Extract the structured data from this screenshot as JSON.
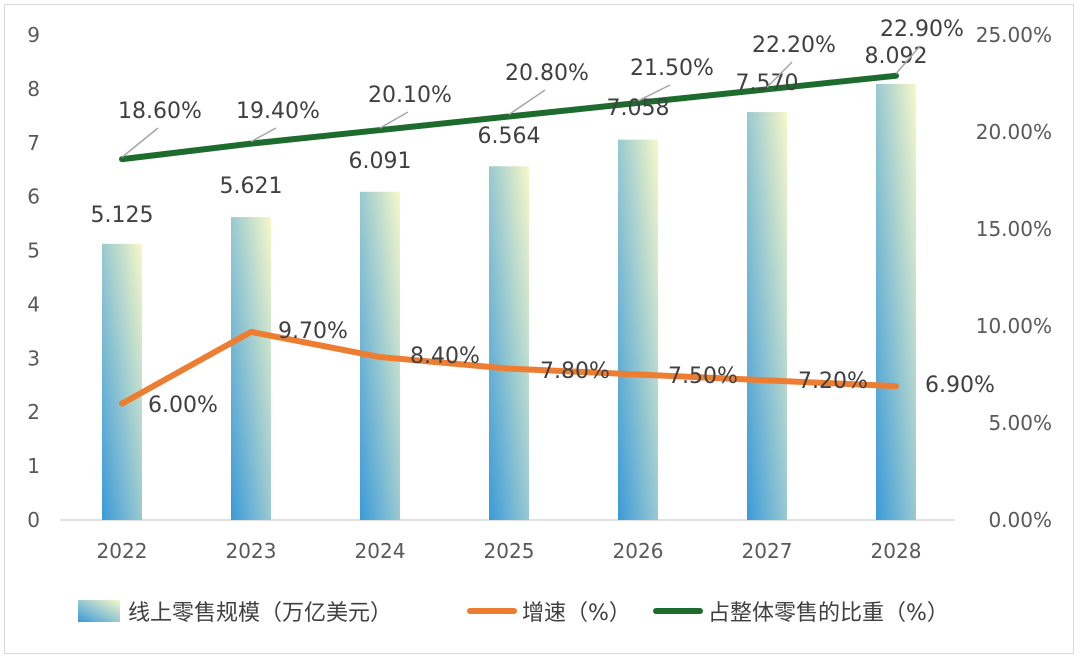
{
  "chart_data": {
    "type": "bar",
    "categories": [
      "2022",
      "2023",
      "2024",
      "2025",
      "2026",
      "2027",
      "2028"
    ],
    "series": [
      {
        "name": "线上零售规模（万亿美元）",
        "type": "bar",
        "axis": "left",
        "values": [
          5.125,
          5.621,
          6.091,
          6.564,
          7.058,
          7.57,
          8.092
        ],
        "labels": [
          "5.125",
          "5.621",
          "6.091",
          "6.564",
          "7.058",
          "7.570",
          "8.092"
        ]
      },
      {
        "name": "增速（%）",
        "type": "line",
        "axis": "right",
        "color": "#ed7d31",
        "values": [
          6.0,
          9.7,
          8.4,
          7.8,
          7.5,
          7.2,
          6.9
        ],
        "labels": [
          "6.00%",
          "9.70%",
          "8.40%",
          "7.80%",
          "7.50%",
          "7.20%",
          "6.90%"
        ]
      },
      {
        "name": "占整体零售的比重（%）",
        "type": "line",
        "axis": "right",
        "color": "#1e6b2e",
        "values": [
          18.6,
          19.4,
          20.1,
          20.8,
          21.5,
          22.2,
          22.9
        ],
        "labels": [
          "18.60%",
          "19.40%",
          "20.10%",
          "20.80%",
          "21.50%",
          "22.20%",
          "22.90%"
        ]
      }
    ],
    "left_axis": {
      "ylim": [
        0,
        9
      ],
      "ticks": [
        "0",
        "1",
        "2",
        "3",
        "4",
        "5",
        "6",
        "7",
        "8",
        "9"
      ]
    },
    "right_axis": {
      "ylim": [
        0,
        25
      ],
      "ticks": [
        "0.00%",
        "5.00%",
        "10.00%",
        "15.00%",
        "20.00%",
        "25.00%"
      ]
    },
    "grid": false,
    "legend": "bottom",
    "colors": {
      "bar_gradient_bottom": "#3a9ad9",
      "bar_gradient_top": "#f6f8c8",
      "growth_line": "#ed7d31",
      "share_line": "#1e6b2e",
      "leader_line": "#a6a6a6"
    }
  }
}
